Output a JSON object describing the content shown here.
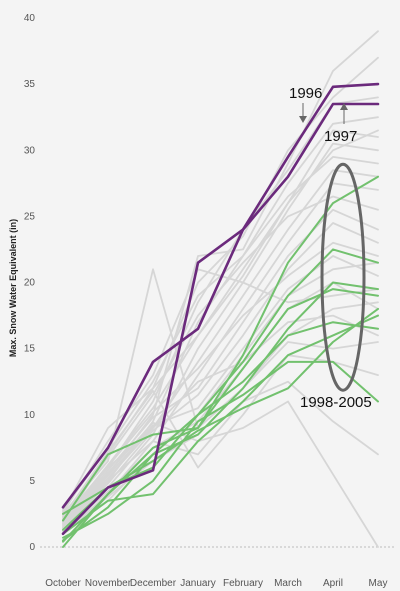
{
  "chart_data": {
    "type": "line",
    "ylabel": "Max. Snow Water Equivalent (in)",
    "ylim": [
      0,
      40
    ],
    "yticks": [
      0,
      5,
      10,
      15,
      20,
      25,
      30,
      35,
      40
    ],
    "categories": [
      "October",
      "November",
      "December",
      "January",
      "February",
      "March",
      "April",
      "May"
    ],
    "grid": false,
    "colors": {
      "background": "#f4f4f4",
      "other_years": "#d6d6d6",
      "highlight": "#6b2a7c",
      "recent": "#72c16e",
      "ellipse": "#666666",
      "baseline": "#bbbbbb"
    },
    "series_groups": [
      {
        "group": "other_years",
        "series": [
          {
            "values": [
              2.5,
              6.5,
              21.0,
              9.0,
              12.0,
              16.0,
              18.0,
              18.5
            ]
          },
          {
            "values": [
              2.0,
              5.5,
              10.0,
              22.0,
              22.5,
              29.0,
              36.0,
              39.0
            ]
          },
          {
            "values": [
              1.8,
              7.0,
              12.0,
              20.0,
              23.5,
              30.0,
              34.0,
              37.0
            ]
          },
          {
            "values": [
              2.2,
              6.0,
              11.0,
              18.5,
              24.0,
              28.5,
              33.5,
              34.0
            ]
          },
          {
            "values": [
              1.5,
              5.0,
              9.5,
              17.0,
              22.0,
              27.5,
              32.0,
              32.5
            ]
          },
          {
            "values": [
              2.0,
              6.2,
              10.5,
              16.0,
              21.0,
              26.0,
              31.5,
              31.0
            ]
          },
          {
            "values": [
              1.2,
              4.5,
              8.5,
              15.0,
              20.0,
              25.5,
              30.5,
              30.0
            ]
          },
          {
            "values": [
              2.8,
              7.5,
              12.5,
              19.0,
              22.0,
              26.5,
              29.5,
              29.0
            ]
          },
          {
            "values": [
              1.6,
              5.2,
              9.0,
              14.0,
              19.0,
              24.0,
              28.5,
              28.0
            ]
          },
          {
            "values": [
              1.0,
              4.0,
              8.0,
              13.0,
              18.0,
              23.0,
              27.5,
              27.0
            ]
          },
          {
            "values": [
              2.4,
              6.8,
              11.5,
              17.5,
              21.5,
              25.0,
              26.5,
              25.5
            ]
          },
          {
            "values": [
              1.9,
              5.8,
              9.8,
              12.0,
              17.0,
              22.0,
              25.5,
              24.0
            ]
          },
          {
            "values": [
              1.4,
              4.8,
              8.8,
              11.5,
              16.0,
              21.0,
              24.5,
              23.0
            ]
          },
          {
            "values": [
              2.1,
              6.1,
              10.2,
              13.5,
              17.5,
              20.5,
              23.0,
              22.0
            ]
          },
          {
            "values": [
              1.7,
              5.4,
              9.2,
              10.5,
              15.0,
              19.5,
              22.0,
              20.5
            ]
          },
          {
            "values": [
              2.6,
              8.0,
              13.0,
              21.0,
              20.0,
              18.5,
              19.0,
              19.5
            ]
          },
          {
            "values": [
              1.3,
              4.2,
              7.5,
              9.5,
              13.5,
              18.0,
              20.0,
              18.0
            ]
          },
          {
            "values": [
              2.0,
              6.0,
              9.0,
              12.5,
              14.0,
              17.0,
              17.5,
              16.0
            ]
          },
          {
            "values": [
              1.1,
              3.8,
              6.5,
              8.5,
              12.0,
              15.5,
              15.0,
              15.5
            ]
          },
          {
            "values": [
              2.3,
              7.2,
              11.8,
              6.0,
              10.0,
              14.5,
              14.0,
              13.0
            ]
          },
          {
            "values": [
              1.5,
              5.0,
              8.0,
              7.0,
              11.0,
              12.5,
              9.5,
              7.0
            ]
          },
          {
            "values": [
              1.8,
              5.6,
              9.4,
              8.0,
              9.0,
              11.0,
              5.5,
              0.0
            ]
          },
          {
            "values": [
              2.7,
              9.0,
              12.0,
              16.0,
              20.5,
              26.0,
              30.0,
              31.5
            ]
          },
          {
            "values": [
              1.2,
              3.5,
              7.0,
              10.0,
              14.5,
              19.0,
              21.0,
              21.5
            ]
          }
        ]
      },
      {
        "group": "recent",
        "label": "1998-2005",
        "series": [
          {
            "values": [
              0.0,
              4.0,
              7.5,
              9.0,
              14.5,
              21.5,
              26.0,
              28.0
            ]
          },
          {
            "values": [
              0.5,
              3.0,
              7.0,
              10.0,
              14.0,
              19.0,
              22.5,
              21.5
            ]
          },
          {
            "values": [
              0.4,
              4.0,
              7.0,
              8.5,
              12.0,
              16.5,
              20.0,
              19.5
            ]
          },
          {
            "values": [
              2.0,
              7.0,
              8.5,
              9.0,
              13.5,
              18.0,
              19.5,
              19.0
            ]
          },
          {
            "values": [
              2.5,
              4.5,
              6.0,
              10.0,
              12.5,
              16.0,
              17.0,
              16.5
            ]
          },
          {
            "values": [
              1.0,
              3.5,
              4.0,
              8.0,
              11.0,
              14.5,
              16.0,
              17.5
            ]
          },
          {
            "values": [
              0.7,
              2.5,
              5.0,
              9.5,
              11.5,
              14.0,
              14.0,
              11.0
            ]
          },
          {
            "values": [
              1.3,
              4.5,
              6.5,
              8.8,
              10.5,
              12.0,
              15.5,
              18.0
            ]
          }
        ]
      },
      {
        "group": "highlight",
        "series": [
          {
            "name": "1996",
            "values": [
              3.0,
              7.5,
              14.0,
              16.5,
              24.0,
              29.5,
              34.8,
              35.0
            ]
          },
          {
            "name": "1997",
            "values": [
              1.0,
              4.5,
              5.8,
              21.5,
              24.0,
              28.0,
              33.5,
              33.5
            ]
          }
        ]
      }
    ],
    "annotations": {
      "label_1996": "1996",
      "label_1997": "1997",
      "label_recent": "1998-2005"
    }
  }
}
